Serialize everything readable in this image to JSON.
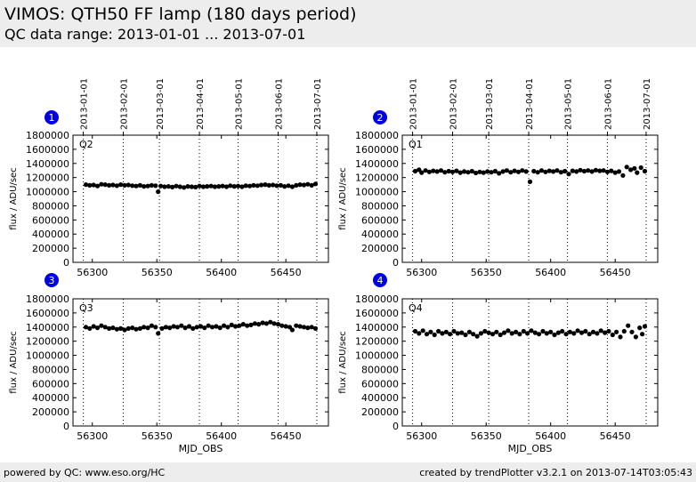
{
  "header": {
    "title": "VIMOS: QTH50 FF lamp (180 days period)",
    "subtitle": "QC data range: 2013-01-01 ... 2013-07-01"
  },
  "footer": {
    "left": "powered by QC: www.eso.org/HC",
    "right": "created by trendPlotter v3.2.1 on 2013-07-14T03:05:43"
  },
  "chart_data": [
    {
      "type": "scatter",
      "panel_number": "1",
      "label": "Q2",
      "xlabel": "",
      "ylabel": "flux / ADU/sec",
      "xlim": [
        56285,
        56483
      ],
      "ylim": [
        0,
        1800000
      ],
      "xticks": [
        56300,
        56350,
        56400,
        56450
      ],
      "yticks": [
        0,
        200000,
        400000,
        600000,
        800000,
        1000000,
        1200000,
        1400000,
        1600000,
        1800000
      ],
      "date_ticks": [
        "2013-01-01",
        "2013-02-01",
        "2013-03-01",
        "2013-04-01",
        "2013-05-01",
        "2013-06-01",
        "2013-07-01"
      ],
      "date_tick_mjd": [
        56293,
        56324,
        56352,
        56383,
        56413,
        56444,
        56474
      ],
      "points": [
        [
          56295,
          1100000
        ],
        [
          56298,
          1090000
        ],
        [
          56301,
          1095000
        ],
        [
          56304,
          1080000
        ],
        [
          56307,
          1105000
        ],
        [
          56310,
          1100000
        ],
        [
          56313,
          1090000
        ],
        [
          56316,
          1095000
        ],
        [
          56319,
          1085000
        ],
        [
          56322,
          1100000
        ],
        [
          56325,
          1090000
        ],
        [
          56328,
          1095000
        ],
        [
          56331,
          1085000
        ],
        [
          56334,
          1080000
        ],
        [
          56337,
          1090000
        ],
        [
          56340,
          1075000
        ],
        [
          56343,
          1080000
        ],
        [
          56346,
          1090000
        ],
        [
          56349,
          1085000
        ],
        [
          56351,
          1000000
        ],
        [
          56353,
          1080000
        ],
        [
          56356,
          1070000
        ],
        [
          56359,
          1075000
        ],
        [
          56362,
          1065000
        ],
        [
          56365,
          1080000
        ],
        [
          56368,
          1070000
        ],
        [
          56371,
          1060000
        ],
        [
          56374,
          1075000
        ],
        [
          56377,
          1070000
        ],
        [
          56380,
          1065000
        ],
        [
          56383,
          1080000
        ],
        [
          56386,
          1070000
        ],
        [
          56389,
          1075000
        ],
        [
          56392,
          1080000
        ],
        [
          56395,
          1070000
        ],
        [
          56398,
          1075000
        ],
        [
          56401,
          1080000
        ],
        [
          56404,
          1070000
        ],
        [
          56407,
          1085000
        ],
        [
          56410,
          1075000
        ],
        [
          56413,
          1080000
        ],
        [
          56416,
          1070000
        ],
        [
          56419,
          1085000
        ],
        [
          56422,
          1080000
        ],
        [
          56425,
          1090000
        ],
        [
          56428,
          1085000
        ],
        [
          56431,
          1095000
        ],
        [
          56434,
          1100000
        ],
        [
          56437,
          1090000
        ],
        [
          56440,
          1095000
        ],
        [
          56443,
          1085000
        ],
        [
          56446,
          1090000
        ],
        [
          56449,
          1075000
        ],
        [
          56452,
          1085000
        ],
        [
          56455,
          1070000
        ],
        [
          56458,
          1090000
        ],
        [
          56461,
          1100000
        ],
        [
          56464,
          1095000
        ],
        [
          56467,
          1105000
        ],
        [
          56470,
          1090000
        ],
        [
          56473,
          1110000
        ]
      ]
    },
    {
      "type": "scatter",
      "panel_number": "2",
      "label": "Q1",
      "xlabel": "",
      "ylabel": "flux / ADU/sec",
      "xlim": [
        56285,
        56483
      ],
      "ylim": [
        0,
        1800000
      ],
      "xticks": [
        56300,
        56350,
        56400,
        56450
      ],
      "yticks": [
        0,
        200000,
        400000,
        600000,
        800000,
        1000000,
        1200000,
        1400000,
        1600000,
        1800000
      ],
      "date_ticks": [
        "2013-01-01",
        "2013-02-01",
        "2013-03-01",
        "2013-04-01",
        "2013-05-01",
        "2013-06-01",
        "2013-07-01"
      ],
      "date_tick_mjd": [
        56293,
        56324,
        56352,
        56383,
        56413,
        56444,
        56474
      ],
      "points": [
        [
          56295,
          1290000
        ],
        [
          56298,
          1310000
        ],
        [
          56300,
          1270000
        ],
        [
          56303,
          1300000
        ],
        [
          56306,
          1280000
        ],
        [
          56309,
          1295000
        ],
        [
          56312,
          1285000
        ],
        [
          56315,
          1300000
        ],
        [
          56318,
          1275000
        ],
        [
          56321,
          1290000
        ],
        [
          56324,
          1280000
        ],
        [
          56327,
          1295000
        ],
        [
          56330,
          1270000
        ],
        [
          56333,
          1285000
        ],
        [
          56336,
          1275000
        ],
        [
          56339,
          1290000
        ],
        [
          56342,
          1265000
        ],
        [
          56345,
          1280000
        ],
        [
          56348,
          1270000
        ],
        [
          56351,
          1285000
        ],
        [
          56354,
          1275000
        ],
        [
          56357,
          1290000
        ],
        [
          56360,
          1260000
        ],
        [
          56363,
          1285000
        ],
        [
          56366,
          1300000
        ],
        [
          56369,
          1275000
        ],
        [
          56372,
          1295000
        ],
        [
          56375,
          1280000
        ],
        [
          56378,
          1300000
        ],
        [
          56381,
          1285000
        ],
        [
          56384,
          1140000
        ],
        [
          56387,
          1290000
        ],
        [
          56390,
          1275000
        ],
        [
          56393,
          1300000
        ],
        [
          56396,
          1280000
        ],
        [
          56399,
          1295000
        ],
        [
          56402,
          1285000
        ],
        [
          56405,
          1300000
        ],
        [
          56408,
          1275000
        ],
        [
          56411,
          1290000
        ],
        [
          56414,
          1250000
        ],
        [
          56417,
          1295000
        ],
        [
          56420,
          1285000
        ],
        [
          56423,
          1305000
        ],
        [
          56426,
          1290000
        ],
        [
          56429,
          1300000
        ],
        [
          56432,
          1285000
        ],
        [
          56435,
          1305000
        ],
        [
          56438,
          1295000
        ],
        [
          56441,
          1300000
        ],
        [
          56444,
          1280000
        ],
        [
          56447,
          1295000
        ],
        [
          56450,
          1270000
        ],
        [
          56453,
          1285000
        ],
        [
          56456,
          1230000
        ],
        [
          56459,
          1350000
        ],
        [
          56462,
          1310000
        ],
        [
          56465,
          1330000
        ],
        [
          56467,
          1270000
        ],
        [
          56470,
          1340000
        ],
        [
          56473,
          1290000
        ]
      ]
    },
    {
      "type": "scatter",
      "panel_number": "3",
      "label": "Q3",
      "xlabel": "MJD_OBS",
      "ylabel": "flux / ADU/sec",
      "xlim": [
        56285,
        56483
      ],
      "ylim": [
        0,
        1800000
      ],
      "xticks": [
        56300,
        56350,
        56400,
        56450
      ],
      "yticks": [
        0,
        200000,
        400000,
        600000,
        800000,
        1000000,
        1200000,
        1400000,
        1600000,
        1800000
      ],
      "date_ticks": [],
      "date_tick_mjd": [
        56293,
        56324,
        56352,
        56383,
        56413,
        56444,
        56474
      ],
      "points": [
        [
          56295,
          1400000
        ],
        [
          56298,
          1380000
        ],
        [
          56301,
          1410000
        ],
        [
          56304,
          1390000
        ],
        [
          56307,
          1420000
        ],
        [
          56310,
          1400000
        ],
        [
          56313,
          1380000
        ],
        [
          56316,
          1390000
        ],
        [
          56319,
          1370000
        ],
        [
          56322,
          1380000
        ],
        [
          56325,
          1360000
        ],
        [
          56328,
          1380000
        ],
        [
          56331,
          1390000
        ],
        [
          56334,
          1370000
        ],
        [
          56337,
          1380000
        ],
        [
          56340,
          1400000
        ],
        [
          56343,
          1390000
        ],
        [
          56346,
          1420000
        ],
        [
          56349,
          1400000
        ],
        [
          56351,
          1310000
        ],
        [
          56354,
          1380000
        ],
        [
          56357,
          1400000
        ],
        [
          56360,
          1390000
        ],
        [
          56363,
          1410000
        ],
        [
          56366,
          1400000
        ],
        [
          56369,
          1420000
        ],
        [
          56372,
          1390000
        ],
        [
          56375,
          1410000
        ],
        [
          56378,
          1380000
        ],
        [
          56381,
          1400000
        ],
        [
          56384,
          1410000
        ],
        [
          56387,
          1390000
        ],
        [
          56390,
          1420000
        ],
        [
          56393,
          1400000
        ],
        [
          56396,
          1410000
        ],
        [
          56399,
          1390000
        ],
        [
          56402,
          1420000
        ],
        [
          56405,
          1400000
        ],
        [
          56408,
          1430000
        ],
        [
          56411,
          1410000
        ],
        [
          56414,
          1420000
        ],
        [
          56417,
          1440000
        ],
        [
          56420,
          1420000
        ],
        [
          56423,
          1430000
        ],
        [
          56426,
          1450000
        ],
        [
          56429,
          1440000
        ],
        [
          56432,
          1460000
        ],
        [
          56435,
          1450000
        ],
        [
          56438,
          1470000
        ],
        [
          56441,
          1450000
        ],
        [
          56444,
          1440000
        ],
        [
          56447,
          1420000
        ],
        [
          56450,
          1410000
        ],
        [
          56453,
          1400000
        ],
        [
          56455,
          1360000
        ],
        [
          56458,
          1420000
        ],
        [
          56461,
          1410000
        ],
        [
          56464,
          1400000
        ],
        [
          56467,
          1390000
        ],
        [
          56470,
          1400000
        ],
        [
          56473,
          1380000
        ]
      ]
    },
    {
      "type": "scatter",
      "panel_number": "4",
      "label": "Q4",
      "xlabel": "MJD_OBS",
      "ylabel": "flux / ADU/sec",
      "xlim": [
        56285,
        56483
      ],
      "ylim": [
        0,
        1800000
      ],
      "xticks": [
        56300,
        56350,
        56400,
        56450
      ],
      "yticks": [
        0,
        200000,
        400000,
        600000,
        800000,
        1000000,
        1200000,
        1400000,
        1600000,
        1800000
      ],
      "date_ticks": [],
      "date_tick_mjd": [
        56293,
        56324,
        56352,
        56383,
        56413,
        56444,
        56474
      ],
      "points": [
        [
          56295,
          1340000
        ],
        [
          56298,
          1310000
        ],
        [
          56301,
          1350000
        ],
        [
          56304,
          1300000
        ],
        [
          56307,
          1330000
        ],
        [
          56310,
          1290000
        ],
        [
          56313,
          1340000
        ],
        [
          56316,
          1310000
        ],
        [
          56319,
          1330000
        ],
        [
          56322,
          1300000
        ],
        [
          56325,
          1340000
        ],
        [
          56328,
          1310000
        ],
        [
          56331,
          1320000
        ],
        [
          56334,
          1290000
        ],
        [
          56337,
          1330000
        ],
        [
          56340,
          1300000
        ],
        [
          56343,
          1270000
        ],
        [
          56346,
          1310000
        ],
        [
          56349,
          1340000
        ],
        [
          56352,
          1320000
        ],
        [
          56355,
          1300000
        ],
        [
          56358,
          1330000
        ],
        [
          56361,
          1290000
        ],
        [
          56364,
          1320000
        ],
        [
          56367,
          1350000
        ],
        [
          56370,
          1310000
        ],
        [
          56373,
          1330000
        ],
        [
          56376,
          1300000
        ],
        [
          56379,
          1340000
        ],
        [
          56382,
          1310000
        ],
        [
          56385,
          1350000
        ],
        [
          56388,
          1320000
        ],
        [
          56391,
          1300000
        ],
        [
          56394,
          1340000
        ],
        [
          56397,
          1310000
        ],
        [
          56400,
          1330000
        ],
        [
          56403,
          1290000
        ],
        [
          56406,
          1320000
        ],
        [
          56409,
          1340000
        ],
        [
          56412,
          1300000
        ],
        [
          56415,
          1330000
        ],
        [
          56418,
          1310000
        ],
        [
          56421,
          1350000
        ],
        [
          56424,
          1320000
        ],
        [
          56427,
          1340000
        ],
        [
          56430,
          1300000
        ],
        [
          56433,
          1330000
        ],
        [
          56436,
          1310000
        ],
        [
          56439,
          1350000
        ],
        [
          56442,
          1320000
        ],
        [
          56445,
          1340000
        ],
        [
          56448,
          1290000
        ],
        [
          56451,
          1330000
        ],
        [
          56454,
          1260000
        ],
        [
          56457,
          1340000
        ],
        [
          56460,
          1420000
        ],
        [
          56463,
          1330000
        ],
        [
          56466,
          1260000
        ],
        [
          56469,
          1390000
        ],
        [
          56471,
          1300000
        ],
        [
          56473,
          1410000
        ]
      ]
    }
  ]
}
